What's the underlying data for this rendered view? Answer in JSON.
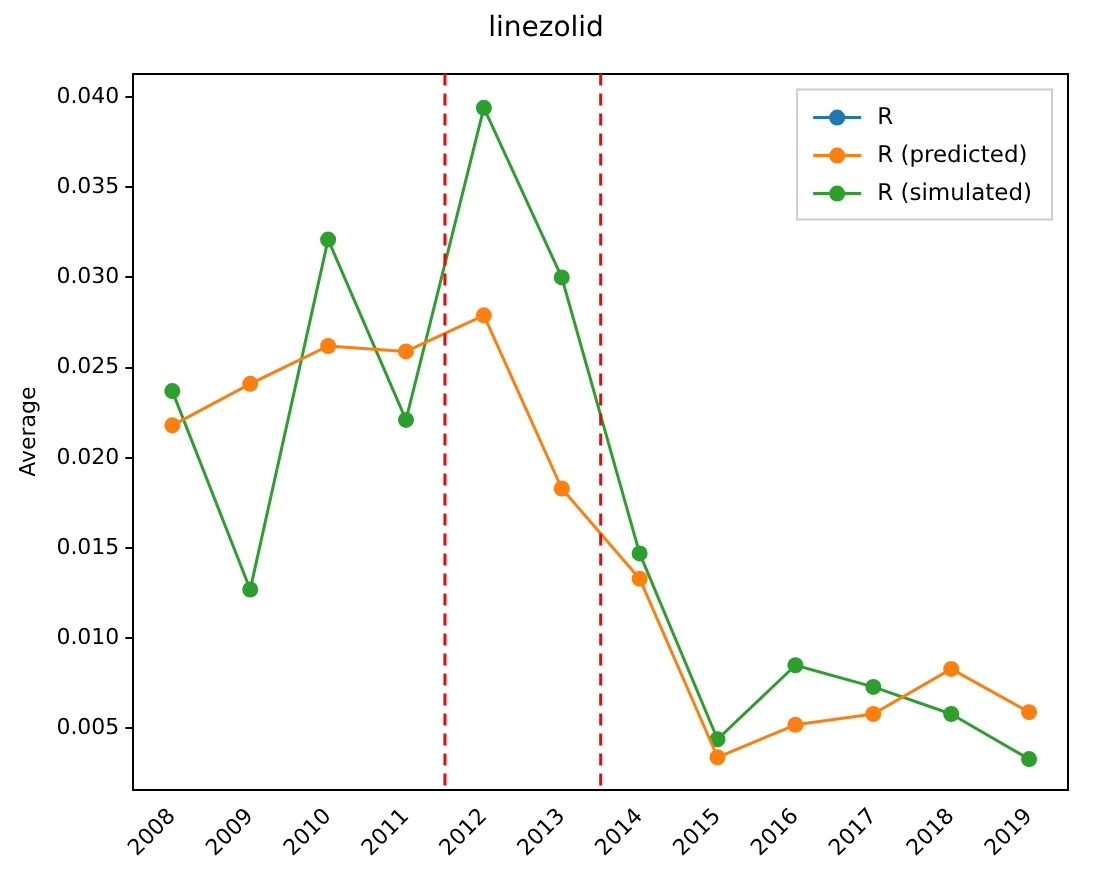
{
  "chart_data": {
    "type": "line",
    "title": "linezolid",
    "ylabel": "Average",
    "x": [
      2008,
      2009,
      2010,
      2011,
      2012,
      2013,
      2014,
      2015,
      2016,
      2017,
      2018,
      2019
    ],
    "series": [
      {
        "name": "R",
        "color": "#1f77b4",
        "values": [
          null,
          null,
          null,
          null,
          null,
          null,
          null,
          null,
          null,
          null,
          null,
          null
        ]
      },
      {
        "name": "R (predicted)",
        "color": "#ff7f0e",
        "values": [
          0.0218,
          0.0241,
          0.0262,
          0.0259,
          0.0279,
          0.0183,
          0.0133,
          0.0034,
          0.0052,
          0.0058,
          0.0083,
          0.0059
        ]
      },
      {
        "name": "R (simulated)",
        "color": "#2ca02c",
        "values": [
          0.0237,
          0.0127,
          0.0321,
          0.0221,
          0.0394,
          0.03,
          0.0147,
          0.0044,
          0.0085,
          0.0073,
          0.0058,
          0.0033
        ]
      }
    ],
    "xlim": [
      2007.5,
      2019.5
    ],
    "xticks": [
      2008,
      2009,
      2010,
      2011,
      2012,
      2013,
      2014,
      2015,
      2016,
      2017,
      2018,
      2019
    ],
    "ylim": [
      0.0016,
      0.0413
    ],
    "yticks": [
      {
        "value": 0.005,
        "label": "0.005"
      },
      {
        "value": 0.01,
        "label": "0.010"
      },
      {
        "value": 0.015,
        "label": "0.015"
      },
      {
        "value": 0.02,
        "label": "0.020"
      },
      {
        "value": 0.025,
        "label": "0.025"
      },
      {
        "value": 0.03,
        "label": "0.030"
      },
      {
        "value": 0.035,
        "label": "0.035"
      },
      {
        "value": 0.04,
        "label": "0.040"
      }
    ],
    "ref_lines": [
      {
        "axis": "x",
        "value": 2011.5,
        "color": "#ff0000",
        "line_style": "dashed"
      },
      {
        "axis": "x",
        "value": 2013.5,
        "color": "#ff0000",
        "line_style": "dashed"
      }
    ],
    "legend": "top right",
    "marker": "circle",
    "grid": false
  }
}
